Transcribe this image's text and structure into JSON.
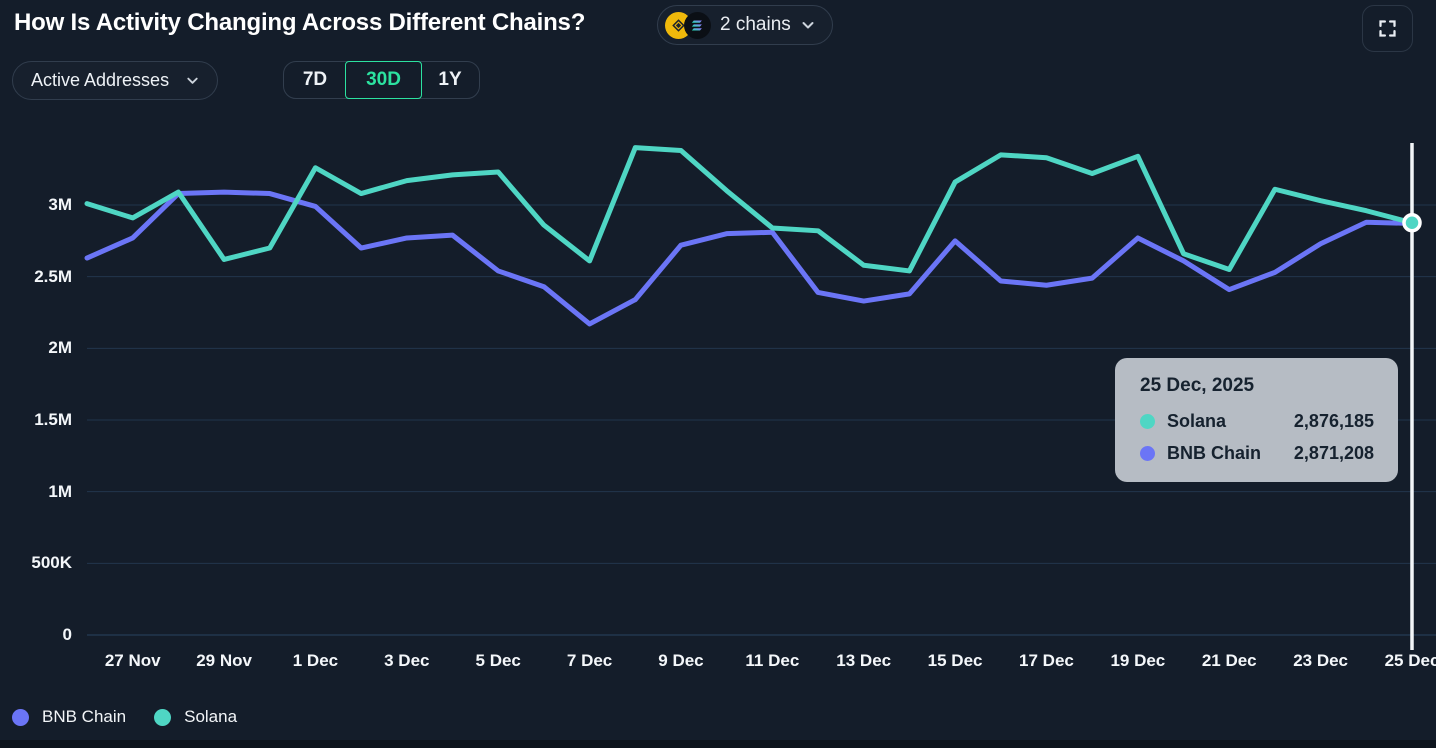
{
  "header": {
    "title": "How Is Activity Changing Across Different Chains?",
    "chains_selector": {
      "label": "2 chains",
      "icons": [
        "bnb-icon",
        "solana-icon"
      ]
    }
  },
  "controls": {
    "metric_dropdown": {
      "value": "Active Addresses"
    },
    "range_tabs": [
      {
        "label": "7D",
        "active": false
      },
      {
        "label": "30D",
        "active": true
      },
      {
        "label": "1Y",
        "active": false
      }
    ]
  },
  "colors": {
    "bnb": "#6b75f6",
    "solana": "#4fd6c4",
    "accent_green": "#2ce2a0",
    "bnb_icon_yellow": "#f0b90b",
    "tooltip_bg": "#b6bcc4",
    "tooltip_text": "#16222f",
    "gridline": "#2b4663",
    "background": "#141d2a",
    "crosshair": "#f2f5f7"
  },
  "tooltip": {
    "date": "25 Dec, 2025",
    "rows": [
      {
        "name": "Solana",
        "value": "2,876,185",
        "color_key": "solana"
      },
      {
        "name": "BNB Chain",
        "value": "2,871,208",
        "color_key": "bnb"
      }
    ]
  },
  "legend": [
    {
      "label": "BNB Chain",
      "color_key": "bnb"
    },
    {
      "label": "Solana",
      "color_key": "solana"
    }
  ],
  "chart_data": {
    "type": "line",
    "x_dates": [
      "26 Nov",
      "27 Nov",
      "28 Nov",
      "29 Nov",
      "30 Nov",
      "1 Dec",
      "2 Dec",
      "3 Dec",
      "4 Dec",
      "5 Dec",
      "6 Dec",
      "7 Dec",
      "8 Dec",
      "9 Dec",
      "10 Dec",
      "11 Dec",
      "12 Dec",
      "13 Dec",
      "14 Dec",
      "15 Dec",
      "16 Dec",
      "17 Dec",
      "18 Dec",
      "19 Dec",
      "20 Dec",
      "21 Dec",
      "22 Dec",
      "23 Dec",
      "24 Dec",
      "25 Dec"
    ],
    "x_tick_label_indices": [
      1,
      3,
      5,
      7,
      9,
      11,
      13,
      15,
      17,
      19,
      21,
      23,
      25,
      27,
      29
    ],
    "series": [
      {
        "name": "BNB Chain",
        "color_key": "bnb",
        "values_millions": [
          2.63,
          2.77,
          3.08,
          3.09,
          3.08,
          2.99,
          2.7,
          2.77,
          2.79,
          2.54,
          2.43,
          2.17,
          2.34,
          2.72,
          2.8,
          2.81,
          2.39,
          2.33,
          2.38,
          2.75,
          2.47,
          2.44,
          2.49,
          2.77,
          2.61,
          2.41,
          2.53,
          2.73,
          2.88,
          2.871208
        ]
      },
      {
        "name": "Solana",
        "color_key": "solana",
        "values_millions": [
          3.01,
          2.91,
          3.09,
          2.62,
          2.7,
          3.26,
          3.08,
          3.17,
          3.21,
          3.23,
          2.86,
          2.61,
          3.4,
          3.38,
          3.1,
          2.84,
          2.82,
          2.58,
          2.54,
          3.16,
          3.35,
          3.33,
          3.22,
          3.34,
          2.66,
          2.55,
          3.11,
          3.03,
          2.96,
          2.876185
        ]
      }
    ],
    "y_ticks": [
      {
        "label": "0",
        "value": 0
      },
      {
        "label": "500K",
        "value": 0.5
      },
      {
        "label": "1M",
        "value": 1
      },
      {
        "label": "1.5M",
        "value": 1.5
      },
      {
        "label": "2M",
        "value": 2
      },
      {
        "label": "2.5M",
        "value": 2.5
      },
      {
        "label": "3M",
        "value": 3
      }
    ],
    "ylim": [
      0,
      3.43
    ],
    "grid": "horizontal",
    "legend_position": "bottom-left",
    "crosshair": {
      "x_index": 29,
      "marker_series": "Solana"
    },
    "title": "How Is Activity Changing Across Different Chains?",
    "xlabel": "",
    "ylabel": "Active Addresses"
  }
}
